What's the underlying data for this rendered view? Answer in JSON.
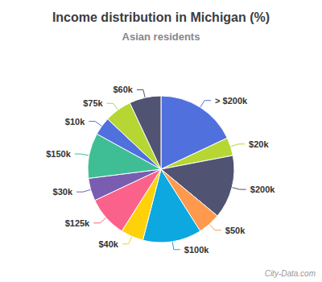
{
  "chart_data": {
    "type": "pie",
    "title": "Income distribution in Michigan (%)",
    "subtitle": "Asian residents",
    "categories": [
      "> $200k",
      "$20k",
      "$200k",
      "$50k",
      "$100k",
      "$40k",
      "$125k",
      "$30k",
      "$150k",
      "$10k",
      "$75k",
      "$60k"
    ],
    "values": [
      18,
      4,
      14,
      5,
      13,
      5,
      9,
      5,
      10,
      4,
      6,
      7
    ],
    "annotations": [
      "City-Data.com"
    ]
  }
}
